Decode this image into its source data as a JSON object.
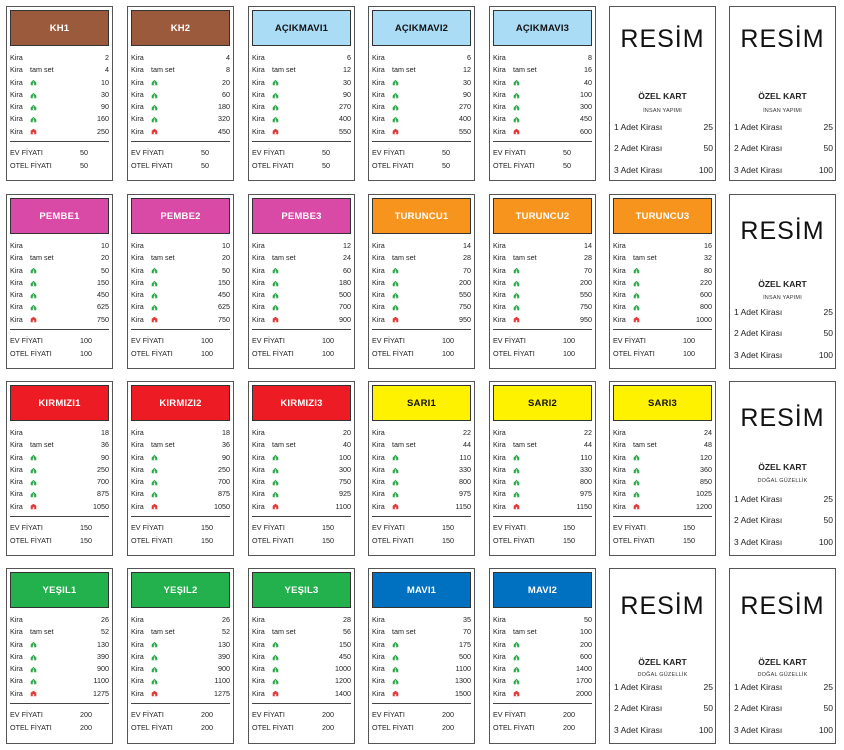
{
  "labels": {
    "rent": "Kira",
    "full_set": "tam set",
    "house_price": "EV FİYATI",
    "hotel_price": "OTEL FİYATI"
  },
  "icons": {
    "house": "house-icon",
    "hotel": "hotel-icon",
    "house_color": "#2aa84a",
    "hotel_color": "#e23b3b"
  },
  "property_cards": [
    {
      "name": "KH1",
      "color": "#9b5a3c",
      "text_color": "#ffffff",
      "rent": "2",
      "rent_full": "4",
      "h1": "10",
      "h2": "30",
      "h3": "90",
      "h4": "160",
      "hotel": "250",
      "house_price": "50",
      "hotel_price": "50"
    },
    {
      "name": "KH2",
      "color": "#9b5a3c",
      "text_color": "#ffffff",
      "rent": "4",
      "rent_full": "8",
      "h1": "20",
      "h2": "60",
      "h3": "180",
      "h4": "320",
      "hotel": "450",
      "house_price": "50",
      "hotel_price": "50"
    },
    {
      "name": "AÇIKMAVI1",
      "color": "#aadcf6",
      "text_color": "#111111",
      "rent": "6",
      "rent_full": "12",
      "h1": "30",
      "h2": "90",
      "h3": "270",
      "h4": "400",
      "hotel": "550",
      "house_price": "50",
      "hotel_price": "50"
    },
    {
      "name": "AÇIKMAVI2",
      "color": "#aadcf6",
      "text_color": "#111111",
      "rent": "6",
      "rent_full": "12",
      "h1": "30",
      "h2": "90",
      "h3": "270",
      "h4": "400",
      "hotel": "550",
      "house_price": "50",
      "hotel_price": "50"
    },
    {
      "name": "AÇIKMAVI3",
      "color": "#aadcf6",
      "text_color": "#111111",
      "rent": "8",
      "rent_full": "16",
      "h1": "40",
      "h2": "100",
      "h3": "300",
      "h4": "450",
      "hotel": "600",
      "house_price": "50",
      "hotel_price": "50"
    },
    {
      "name": "PEMBE1",
      "color": "#d94aa6",
      "text_color": "#ffffff",
      "rent": "10",
      "rent_full": "20",
      "h1": "50",
      "h2": "150",
      "h3": "450",
      "h4": "625",
      "hotel": "750",
      "house_price": "100",
      "hotel_price": "100"
    },
    {
      "name": "PEMBE2",
      "color": "#d94aa6",
      "text_color": "#ffffff",
      "rent": "10",
      "rent_full": "20",
      "h1": "50",
      "h2": "150",
      "h3": "450",
      "h4": "625",
      "hotel": "750",
      "house_price": "100",
      "hotel_price": "100"
    },
    {
      "name": "PEMBE3",
      "color": "#d94aa6",
      "text_color": "#ffffff",
      "rent": "12",
      "rent_full": "24",
      "h1": "60",
      "h2": "180",
      "h3": "500",
      "h4": "700",
      "hotel": "900",
      "house_price": "100",
      "hotel_price": "100"
    },
    {
      "name": "TURUNCU1",
      "color": "#f7941d",
      "text_color": "#ffffff",
      "rent": "14",
      "rent_full": "28",
      "h1": "70",
      "h2": "200",
      "h3": "550",
      "h4": "750",
      "hotel": "950",
      "house_price": "100",
      "hotel_price": "100"
    },
    {
      "name": "TURUNCU2",
      "color": "#f7941d",
      "text_color": "#ffffff",
      "rent": "14",
      "rent_full": "28",
      "h1": "70",
      "h2": "200",
      "h3": "550",
      "h4": "750",
      "hotel": "950",
      "house_price": "100",
      "hotel_price": "100"
    },
    {
      "name": "TURUNCU3",
      "color": "#f7941d",
      "text_color": "#ffffff",
      "rent": "16",
      "rent_full": "32",
      "h1": "80",
      "h2": "220",
      "h3": "600",
      "h4": "800",
      "hotel": "1000",
      "house_price": "100",
      "hotel_price": "100"
    },
    {
      "name": "KIRMIZI1",
      "color": "#ed1c24",
      "text_color": "#ffffff",
      "rent": "18",
      "rent_full": "36",
      "h1": "90",
      "h2": "250",
      "h3": "700",
      "h4": "875",
      "hotel": "1050",
      "house_price": "150",
      "hotel_price": "150"
    },
    {
      "name": "KIRMIZI2",
      "color": "#ed1c24",
      "text_color": "#ffffff",
      "rent": "18",
      "rent_full": "36",
      "h1": "90",
      "h2": "250",
      "h3": "700",
      "h4": "875",
      "hotel": "1050",
      "house_price": "150",
      "hotel_price": "150"
    },
    {
      "name": "KIRMIZI3",
      "color": "#ed1c24",
      "text_color": "#ffffff",
      "rent": "20",
      "rent_full": "40",
      "h1": "100",
      "h2": "300",
      "h3": "750",
      "h4": "925",
      "hotel": "1100",
      "house_price": "150",
      "hotel_price": "150"
    },
    {
      "name": "SARI1",
      "color": "#fff200",
      "text_color": "#111111",
      "rent": "22",
      "rent_full": "44",
      "h1": "110",
      "h2": "330",
      "h3": "800",
      "h4": "975",
      "hotel": "1150",
      "house_price": "150",
      "hotel_price": "150"
    },
    {
      "name": "SARI2",
      "color": "#fff200",
      "text_color": "#111111",
      "rent": "22",
      "rent_full": "44",
      "h1": "110",
      "h2": "330",
      "h3": "800",
      "h4": "975",
      "hotel": "1150",
      "house_price": "150",
      "hotel_price": "150"
    },
    {
      "name": "SARI3",
      "color": "#fff200",
      "text_color": "#111111",
      "rent": "24",
      "rent_full": "48",
      "h1": "120",
      "h2": "360",
      "h3": "850",
      "h4": "1025",
      "hotel": "1200",
      "house_price": "150",
      "hotel_price": "150"
    },
    {
      "name": "YEŞIL1",
      "color": "#22b14c",
      "text_color": "#ffffff",
      "rent": "26",
      "rent_full": "52",
      "h1": "130",
      "h2": "390",
      "h3": "900",
      "h4": "1100",
      "hotel": "1275",
      "house_price": "200",
      "hotel_price": "200"
    },
    {
      "name": "YEŞIL2",
      "color": "#22b14c",
      "text_color": "#ffffff",
      "rent": "26",
      "rent_full": "52",
      "h1": "130",
      "h2": "390",
      "h3": "900",
      "h4": "1100",
      "hotel": "1275",
      "house_price": "200",
      "hotel_price": "200"
    },
    {
      "name": "YEŞIL3",
      "color": "#22b14c",
      "text_color": "#ffffff",
      "rent": "28",
      "rent_full": "56",
      "h1": "150",
      "h2": "450",
      "h3": "1000",
      "h4": "1200",
      "hotel": "1400",
      "house_price": "200",
      "hotel_price": "200"
    },
    {
      "name": "MAVI1",
      "color": "#0070c0",
      "text_color": "#ffffff",
      "rent": "35",
      "rent_full": "70",
      "h1": "175",
      "h2": "500",
      "h3": "1100",
      "h4": "1300",
      "hotel": "1500",
      "house_price": "200",
      "hotel_price": "200"
    },
    {
      "name": "MAVI2",
      "color": "#0070c0",
      "text_color": "#ffffff",
      "rent": "50",
      "rent_full": "100",
      "h1": "200",
      "h2": "600",
      "h3": "1400",
      "h4": "1700",
      "hotel": "2000",
      "house_price": "200",
      "hotel_price": "200"
    }
  ],
  "special_cards": [
    {
      "title": "RESİM",
      "subtitle": "ÖZEL KART",
      "note": "İNSAN YAPIMI",
      "rows": [
        {
          "label": "1 Adet Kirası",
          "value": "25"
        },
        {
          "label": "2 Adet Kirası",
          "value": "50"
        },
        {
          "label": "3 Adet Kirası",
          "value": "100"
        }
      ]
    },
    {
      "title": "RESİM",
      "subtitle": "ÖZEL KART",
      "note": "İNSAN YAPIMI",
      "rows": [
        {
          "label": "1 Adet Kirası",
          "value": "25"
        },
        {
          "label": "2 Adet Kirası",
          "value": "50"
        },
        {
          "label": "3 Adet Kirası",
          "value": "100"
        }
      ]
    },
    {
      "title": "RESİM",
      "subtitle": "ÖZEL KART",
      "note": "İNSAN YAPIMI",
      "rows": [
        {
          "label": "1 Adet Kirası",
          "value": "25"
        },
        {
          "label": "2 Adet Kirası",
          "value": "50"
        },
        {
          "label": "3 Adet Kirası",
          "value": "100"
        }
      ]
    },
    {
      "title": "RESİM",
      "subtitle": "ÖZEL KART",
      "note": "DOĞAL GÜZELLİK",
      "rows": [
        {
          "label": "1 Adet Kirası",
          "value": "25"
        },
        {
          "label": "2 Adet Kirası",
          "value": "50"
        },
        {
          "label": "3 Adet Kirası",
          "value": "100"
        }
      ]
    },
    {
      "title": "RESİM",
      "subtitle": "ÖZEL KART",
      "note": "DOĞAL GÜZELLİK",
      "rows": [
        {
          "label": "1 Adet Kirası",
          "value": "25"
        },
        {
          "label": "2 Adet Kirası",
          "value": "50"
        },
        {
          "label": "3 Adet Kirası",
          "value": "100"
        }
      ]
    },
    {
      "title": "RESİM",
      "subtitle": "ÖZEL KART",
      "note": "DOĞAL GÜZELLİK",
      "rows": [
        {
          "label": "1 Adet Kirası",
          "value": "25"
        },
        {
          "label": "2 Adet Kirası",
          "value": "50"
        },
        {
          "label": "3 Adet Kirası",
          "value": "100"
        }
      ]
    }
  ]
}
